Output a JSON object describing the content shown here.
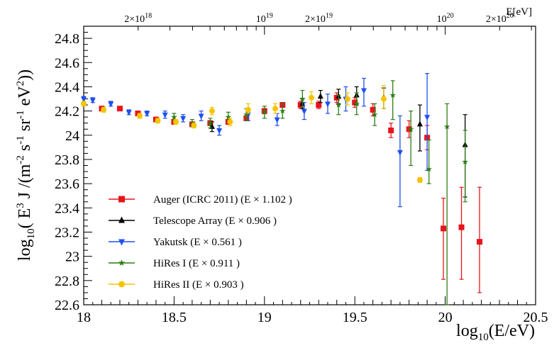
{
  "chart_data": {
    "type": "scatter",
    "xlabel": "log10(E/eV)",
    "ylabel": "log10( E3 J /(m-2 s-1 sr-1 eV2))",
    "xlim": [
      18,
      20.5
    ],
    "ylim": [
      22.6,
      24.9
    ],
    "x_ticks": [
      "18",
      "18.5",
      "19",
      "19.5",
      "20",
      "20.5"
    ],
    "y_ticks": [
      "22.6",
      "22.8",
      "23",
      "23.2",
      "23.4",
      "23.6",
      "23.8",
      "24",
      "24.2",
      "24.4",
      "24.6",
      "24.8"
    ],
    "top_axis": {
      "label": "E[eV]",
      "ticks": [
        {
          "x": 18.301,
          "base": "2×10",
          "exp": "18"
        },
        {
          "x": 19.0,
          "base": "10",
          "exp": "19"
        },
        {
          "x": 19.301,
          "base": "2×10",
          "exp": "19"
        },
        {
          "x": 20.0,
          "base": "10",
          "exp": "20"
        },
        {
          "x": 20.301,
          "base": "2×10",
          "exp": "20"
        }
      ]
    },
    "legend_position": "bottom-left",
    "series": [
      {
        "name": "Auger (ICRC 2011) (E × 1.102 )",
        "color": "#e8141b",
        "marker": "square",
        "points": [
          {
            "x": 18.1,
            "y": 24.22,
            "lo": 24.21,
            "hi": 24.23
          },
          {
            "x": 18.2,
            "y": 24.22,
            "lo": 24.21,
            "hi": 24.23
          },
          {
            "x": 18.3,
            "y": 24.18,
            "lo": 24.17,
            "hi": 24.19
          },
          {
            "x": 18.4,
            "y": 24.13,
            "lo": 24.12,
            "hi": 24.14
          },
          {
            "x": 18.5,
            "y": 24.11,
            "lo": 24.1,
            "hi": 24.12
          },
          {
            "x": 18.6,
            "y": 24.09,
            "lo": 24.07,
            "hi": 24.11
          },
          {
            "x": 18.7,
            "y": 24.1,
            "lo": 24.08,
            "hi": 24.12
          },
          {
            "x": 18.8,
            "y": 24.11,
            "lo": 24.09,
            "hi": 24.13
          },
          {
            "x": 18.9,
            "y": 24.14,
            "lo": 24.12,
            "hi": 24.16
          },
          {
            "x": 19.0,
            "y": 24.2,
            "lo": 24.18,
            "hi": 24.22
          },
          {
            "x": 19.1,
            "y": 24.25,
            "lo": 24.23,
            "hi": 24.27
          },
          {
            "x": 19.2,
            "y": 24.25,
            "lo": 24.22,
            "hi": 24.28
          },
          {
            "x": 19.3,
            "y": 24.25,
            "lo": 24.22,
            "hi": 24.28
          },
          {
            "x": 19.4,
            "y": 24.31,
            "lo": 24.27,
            "hi": 24.35
          },
          {
            "x": 19.5,
            "y": 24.27,
            "lo": 24.23,
            "hi": 24.31
          },
          {
            "x": 19.6,
            "y": 24.21,
            "lo": 24.16,
            "hi": 24.26
          },
          {
            "x": 19.7,
            "y": 24.04,
            "lo": 23.98,
            "hi": 24.1
          },
          {
            "x": 19.8,
            "y": 24.05,
            "lo": 23.98,
            "hi": 24.12
          },
          {
            "x": 19.9,
            "y": 23.98,
            "lo": 23.88,
            "hi": 24.08
          },
          {
            "x": 19.99,
            "y": 23.23,
            "lo": 22.81,
            "hi": 23.48
          },
          {
            "x": 20.09,
            "y": 23.24,
            "lo": 22.81,
            "hi": 23.57
          },
          {
            "x": 20.19,
            "y": 23.12,
            "lo": 22.7,
            "hi": 23.57
          }
        ]
      },
      {
        "name": "Telescope Array (E × 0.906 )",
        "color": "#000000",
        "marker": "triangle-up",
        "points": [
          {
            "x": 18.71,
            "y": 24.07,
            "lo": 24.03,
            "hi": 24.11
          },
          {
            "x": 19.21,
            "y": 24.26,
            "lo": 24.22,
            "hi": 24.3
          },
          {
            "x": 19.31,
            "y": 24.32,
            "lo": 24.27,
            "hi": 24.37
          },
          {
            "x": 19.41,
            "y": 24.32,
            "lo": 24.26,
            "hi": 24.38
          },
          {
            "x": 19.51,
            "y": 24.33,
            "lo": 24.25,
            "hi": 24.4
          },
          {
            "x": 19.66,
            "y": 24.31,
            "lo": 24.22,
            "hi": 24.39
          },
          {
            "x": 19.86,
            "y": 24.09,
            "lo": 23.87,
            "hi": 24.25
          },
          {
            "x": 20.11,
            "y": 23.92,
            "lo": 23.49,
            "hi": 24.17
          }
        ]
      },
      {
        "name": "Yakutsk (E × 0.561 )",
        "color": "#1e4ff0",
        "marker": "triangle-down",
        "points": [
          {
            "x": 18.0,
            "y": 24.3,
            "lo": 24.28,
            "hi": 24.32
          },
          {
            "x": 18.05,
            "y": 24.29,
            "lo": 24.27,
            "hi": 24.31
          },
          {
            "x": 18.15,
            "y": 24.26,
            "lo": 24.24,
            "hi": 24.28
          },
          {
            "x": 18.25,
            "y": 24.19,
            "lo": 24.17,
            "hi": 24.21
          },
          {
            "x": 18.35,
            "y": 24.18,
            "lo": 24.16,
            "hi": 24.2
          },
          {
            "x": 18.45,
            "y": 24.17,
            "lo": 24.14,
            "hi": 24.2
          },
          {
            "x": 18.55,
            "y": 24.14,
            "lo": 24.11,
            "hi": 24.17
          },
          {
            "x": 18.65,
            "y": 24.16,
            "lo": 24.12,
            "hi": 24.2
          },
          {
            "x": 18.75,
            "y": 24.04,
            "lo": 24.0,
            "hi": 24.08
          },
          {
            "x": 18.91,
            "y": 24.17,
            "lo": 24.12,
            "hi": 24.22
          },
          {
            "x": 19.07,
            "y": 24.13,
            "lo": 24.08,
            "hi": 24.18
          },
          {
            "x": 19.22,
            "y": 24.2,
            "lo": 24.13,
            "hi": 24.27
          },
          {
            "x": 19.35,
            "y": 24.26,
            "lo": 24.18,
            "hi": 24.34
          },
          {
            "x": 19.45,
            "y": 24.3,
            "lo": 24.2,
            "hi": 24.4
          },
          {
            "x": 19.55,
            "y": 24.37,
            "lo": 24.24,
            "hi": 24.47
          },
          {
            "x": 19.75,
            "y": 23.86,
            "lo": 23.41,
            "hi": 24.16
          },
          {
            "x": 19.9,
            "y": 24.15,
            "lo": 23.71,
            "hi": 24.51
          }
        ]
      },
      {
        "name": "HiRes I (E × 0.911 )",
        "color": "#2e7d14",
        "marker": "star",
        "points": [
          {
            "x": 18.5,
            "y": 24.15,
            "lo": 24.12,
            "hi": 24.18
          },
          {
            "x": 18.6,
            "y": 24.1,
            "lo": 24.07,
            "hi": 24.13
          },
          {
            "x": 18.7,
            "y": 24.1,
            "lo": 24.06,
            "hi": 24.14
          },
          {
            "x": 18.8,
            "y": 24.15,
            "lo": 24.11,
            "hi": 24.19
          },
          {
            "x": 18.9,
            "y": 24.17,
            "lo": 24.12,
            "hi": 24.22
          },
          {
            "x": 19.0,
            "y": 24.19,
            "lo": 24.14,
            "hi": 24.24
          },
          {
            "x": 19.1,
            "y": 24.2,
            "lo": 24.14,
            "hi": 24.26
          },
          {
            "x": 19.21,
            "y": 24.3,
            "lo": 24.23,
            "hi": 24.37
          },
          {
            "x": 19.41,
            "y": 24.25,
            "lo": 24.17,
            "hi": 24.33
          },
          {
            "x": 19.51,
            "y": 24.26,
            "lo": 24.17,
            "hi": 24.35
          },
          {
            "x": 19.61,
            "y": 24.17,
            "lo": 24.08,
            "hi": 24.26
          },
          {
            "x": 19.71,
            "y": 24.33,
            "lo": 24.13,
            "hi": 24.45
          },
          {
            "x": 19.81,
            "y": 24.05,
            "lo": 23.75,
            "hi": 24.2
          },
          {
            "x": 19.91,
            "y": 23.72,
            "lo": 23.6,
            "hi": 23.96
          },
          {
            "x": 20.01,
            "y": 24.07,
            "lo": 22.6,
            "hi": 24.26
          },
          {
            "x": 20.11,
            "y": 23.78,
            "lo": 23.45,
            "hi": 24.04
          }
        ]
      },
      {
        "name": "HiRes II (E × 0.903 )",
        "color": "#f5c400",
        "marker": "circle",
        "points": [
          {
            "x": 18.0,
            "y": 24.26,
            "lo": 24.24,
            "hi": 24.28
          },
          {
            "x": 18.11,
            "y": 24.21,
            "lo": 24.19,
            "hi": 24.23
          },
          {
            "x": 18.31,
            "y": 24.16,
            "lo": 24.14,
            "hi": 24.18
          },
          {
            "x": 18.41,
            "y": 24.12,
            "lo": 24.1,
            "hi": 24.14
          },
          {
            "x": 18.51,
            "y": 24.11,
            "lo": 24.09,
            "hi": 24.13
          },
          {
            "x": 18.61,
            "y": 24.08,
            "lo": 24.06,
            "hi": 24.1
          },
          {
            "x": 18.71,
            "y": 24.2,
            "lo": 24.17,
            "hi": 24.23
          },
          {
            "x": 18.81,
            "y": 24.11,
            "lo": 24.08,
            "hi": 24.14
          },
          {
            "x": 18.91,
            "y": 24.21,
            "lo": 24.18,
            "hi": 24.26
          },
          {
            "x": 19.06,
            "y": 24.22,
            "lo": 24.18,
            "hi": 24.26
          },
          {
            "x": 19.26,
            "y": 24.31,
            "lo": 24.26,
            "hi": 24.36
          },
          {
            "x": 19.46,
            "y": 24.3,
            "lo": 24.25,
            "hi": 24.35
          },
          {
            "x": 19.66,
            "y": 24.3,
            "lo": 24.22,
            "hi": 24.41
          },
          {
            "x": 19.86,
            "y": 23.63,
            "lo": 23.61,
            "hi": 23.65
          }
        ]
      }
    ]
  }
}
